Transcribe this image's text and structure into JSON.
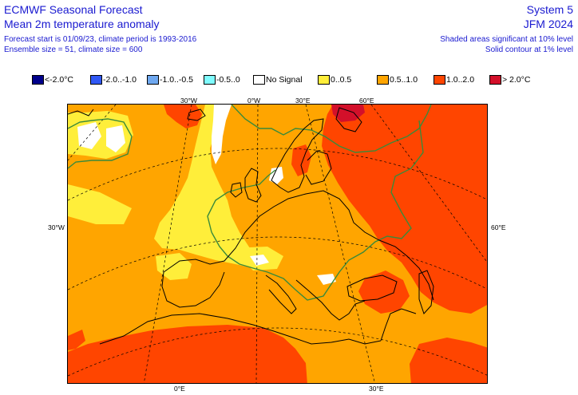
{
  "header": {
    "title": "ECMWF Seasonal Forecast",
    "subtitle": "Mean 2m temperature anomaly",
    "info_line1": "Forecast start is 01/09/23, climate period is 1993-2016",
    "info_line2": "Ensemble size = 51, climate size = 600",
    "system": "System 5",
    "period": "JFM 2024",
    "note_shaded": "Shaded areas significant at 10% level",
    "note_contour": "Solid contour at 1% level"
  },
  "legend": [
    {
      "label": "<-2.0°C",
      "color": "#00008b"
    },
    {
      "label": "-2.0..-1.0",
      "color": "#3058f5"
    },
    {
      "label": "-1.0..-0.5",
      "color": "#6fa8f0"
    },
    {
      "label": "-0.5..0",
      "color": "#80fcff"
    },
    {
      "label": "No Signal",
      "color": "#ffffff"
    },
    {
      "label": "0..0.5",
      "color": "#ffee3a"
    },
    {
      "label": "0.5..1.0",
      "color": "#ffa500"
    },
    {
      "label": "1.0..2.0",
      "color": "#ff4500"
    },
    {
      "label": "> 2.0°C",
      "color": "#d3102a"
    }
  ],
  "map_labels": {
    "top_30w": "30°W",
    "top_0w": "0°W",
    "top_30e": "30°E",
    "top_60e": "60°E",
    "left_30w": "30°W",
    "right_60e": "60°E",
    "bottom_0e": "0°E",
    "bottom_30e": "30°E"
  },
  "colors": {
    "text": "#1a1ad0",
    "significance_contour": "#3a8a3a",
    "coastline": "#000000",
    "gridline": "#000000"
  }
}
